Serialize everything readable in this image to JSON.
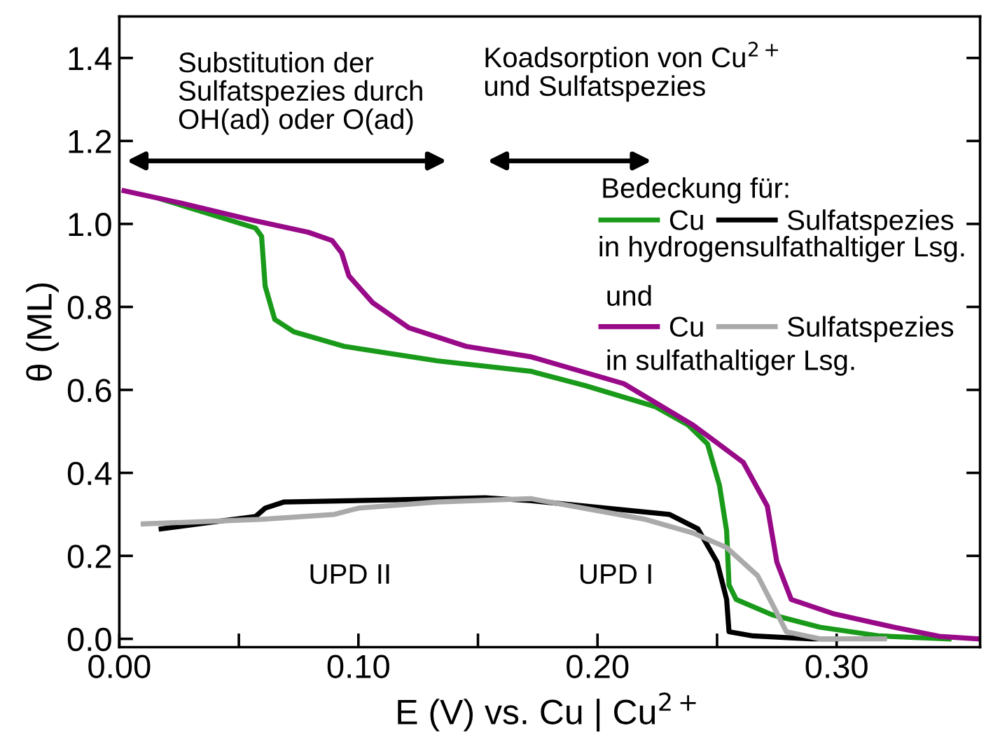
{
  "chart_data": {
    "type": "line",
    "xlabel": "E (V) vs. Cu | Cu$^{2+}$",
    "ylabel": "θ (ML)",
    "legend_title": "Bedeckung für:",
    "xlim": [
      0,
      0.36
    ],
    "ylim": [
      -0.02,
      1.5
    ],
    "xticks": [
      {
        "value": 0,
        "label": "0.00"
      },
      {
        "value": 0.05,
        "label": null
      },
      {
        "value": 0.1,
        "label": "0.10"
      },
      {
        "value": 0.15,
        "label": null
      },
      {
        "value": 0.2,
        "label": "0.20"
      },
      {
        "value": 0.25,
        "label": null
      },
      {
        "value": 0.3,
        "label": "0.30"
      }
    ],
    "yticks": [
      {
        "value": 0,
        "label": "0.0"
      },
      {
        "value": 0.2,
        "label": "0.2"
      },
      {
        "value": 0.4,
        "label": "0.4"
      },
      {
        "value": 0.6,
        "label": "0.6"
      },
      {
        "value": 0.8,
        "label": "0.8"
      },
      {
        "value": 1.0,
        "label": "1.0"
      },
      {
        "value": 1.2,
        "label": "1.2"
      },
      {
        "value": 1.4,
        "label": "1.4"
      }
    ],
    "grid": false,
    "legend": "top right",
    "marker": "none",
    "line_style": "solid",
    "series": [
      {
        "name": "Cu",
        "color": "#1a9a1a",
        "x": [
          0.0175,
          0.057,
          0.0595,
          0.061,
          0.065,
          0.073,
          0.094,
          0.133,
          0.172,
          0.195,
          0.224,
          0.238,
          0.246,
          0.251,
          0.254,
          0.255,
          0.258,
          0.273,
          0.293,
          0.318,
          0.347
        ],
        "values": [
          1.06,
          0.99,
          0.97,
          0.85,
          0.77,
          0.74,
          0.705,
          0.67,
          0.645,
          0.61,
          0.56,
          0.515,
          0.47,
          0.37,
          0.26,
          0.13,
          0.095,
          0.058,
          0.028,
          0.007,
          0.0
        ]
      },
      {
        "name": "Sulfatspezies",
        "color": "#000000",
        "x": [
          0.0175,
          0.057,
          0.061,
          0.069,
          0.114,
          0.153,
          0.172,
          0.23,
          0.242,
          0.25,
          0.254,
          0.255,
          0.265,
          0.289,
          0.3
        ],
        "values": [
          0.265,
          0.295,
          0.315,
          0.33,
          0.335,
          0.34,
          0.333,
          0.3,
          0.265,
          0.185,
          0.095,
          0.017,
          0.007,
          0.0,
          0.0
        ]
      },
      {
        "name": "Cu",
        "color": "#980a88",
        "x": [
          0.002,
          0.026,
          0.055,
          0.079,
          0.089,
          0.093,
          0.096,
          0.106,
          0.121,
          0.145,
          0.172,
          0.211,
          0.24,
          0.261,
          0.271,
          0.275,
          0.281,
          0.299,
          0.324,
          0.343,
          0.359
        ],
        "values": [
          1.08,
          1.05,
          1.01,
          0.98,
          0.96,
          0.93,
          0.875,
          0.81,
          0.75,
          0.705,
          0.68,
          0.615,
          0.515,
          0.425,
          0.32,
          0.185,
          0.095,
          0.06,
          0.028,
          0.006,
          0.0
        ]
      },
      {
        "name": "Sulfatspezies",
        "color": "#aaaaaa",
        "x": [
          0.01,
          0.0595,
          0.09,
          0.1,
          0.133,
          0.172,
          0.22,
          0.24,
          0.254,
          0.267,
          0.273,
          0.279,
          0.293,
          0.32
        ],
        "values": [
          0.277,
          0.288,
          0.3,
          0.315,
          0.33,
          0.338,
          0.288,
          0.255,
          0.22,
          0.152,
          0.085,
          0.017,
          0.0,
          0.0
        ]
      }
    ],
    "annotations": [
      "Substitution der\nSulfatspezies durch\nOH(ad) oder O(ad)",
      "Koadsorption von Cu$^{2+}$\nund Sulfatspezies",
      "UPD II",
      "UPD I",
      "in hydrogensulfathaltiger Lsg.",
      "und",
      "in sulfathaltiger Lsg."
    ]
  }
}
